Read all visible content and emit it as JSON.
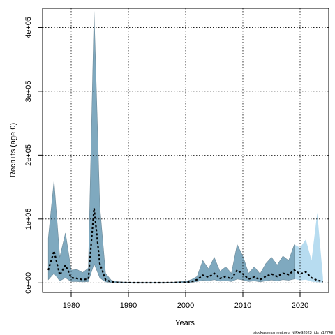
{
  "chart_data": {
    "type": "area",
    "title": "",
    "xlabel": "Years",
    "ylabel": "Recruits (age 0)",
    "credit": "stockassessment.org, NIPAG2023_ids_r17748",
    "xlim": [
      1975,
      2025
    ],
    "ylim": [
      -15000,
      430000
    ],
    "xticks": [
      1980,
      1990,
      2000,
      2010,
      2020
    ],
    "xtick_labels": [
      "1980",
      "1990",
      "2000",
      "2010",
      "2020"
    ],
    "yticks": [
      0,
      100000,
      200000,
      300000,
      400000
    ],
    "ytick_labels": [
      "0e+00",
      "1e+05",
      "2e+05",
      "3e+05",
      "4e+05"
    ],
    "grid": true,
    "grid_style": "dotted",
    "colors": {
      "band": "#7fa9bf",
      "band_edge": "#6e8a99",
      "band_recent": "#b7dcf0",
      "line": "#000000"
    },
    "series": [
      {
        "years": [
          1976,
          1977,
          1978,
          1979,
          1980,
          1981,
          1982,
          1983,
          1984,
          1985,
          1986,
          1987,
          1988,
          1989,
          1990,
          1991,
          1992,
          1993,
          1994,
          1995,
          1996,
          1997,
          1998,
          1999,
          2000,
          2001,
          2002,
          2003,
          2004,
          2005,
          2006,
          2007,
          2008,
          2009,
          2010,
          2011,
          2012,
          2013,
          2014,
          2015,
          2016,
          2017,
          2018,
          2019,
          2020,
          2021,
          2022,
          2023,
          2024
        ],
        "estimate": [
          20000,
          50000,
          12000,
          28000,
          8000,
          7000,
          5000,
          6000,
          117000,
          30000,
          5000,
          1500,
          800,
          500,
          400,
          300,
          300,
          300,
          300,
          300,
          300,
          400,
          500,
          700,
          900,
          2000,
          5000,
          12000,
          9000,
          15000,
          7000,
          10000,
          6000,
          20000,
          14000,
          6000,
          9000,
          5000,
          10000,
          14000,
          10000,
          15000,
          13000,
          20000,
          14000,
          17000,
          8000,
          4000,
          2000
        ],
        "lower": [
          5000,
          15000,
          3000,
          8000,
          2000,
          2000,
          1500,
          2000,
          30000,
          8000,
          1500,
          500,
          300,
          200,
          150,
          100,
          100,
          100,
          100,
          100,
          100,
          150,
          200,
          300,
          400,
          900,
          2000,
          4000,
          3000,
          5000,
          2500,
          3500,
          2000,
          6000,
          4500,
          2000,
          3000,
          1500,
          3000,
          4500,
          3000,
          5000,
          4000,
          6000,
          4000,
          5000,
          2000,
          1000,
          500
        ],
        "upper": [
          70000,
          160000,
          40000,
          78000,
          20000,
          21000,
          16000,
          23000,
          425000,
          120000,
          15000,
          4000,
          2000,
          1300,
          1000,
          800,
          800,
          800,
          800,
          800,
          800,
          1000,
          1200,
          1800,
          2500,
          5000,
          10000,
          35000,
          22000,
          40000,
          18000,
          25000,
          15000,
          60000,
          42000,
          15000,
          25000,
          14000,
          30000,
          40000,
          28000,
          42000,
          35000,
          60000,
          55000,
          68000,
          35000,
          110000,
          8000
        ]
      }
    ]
  }
}
